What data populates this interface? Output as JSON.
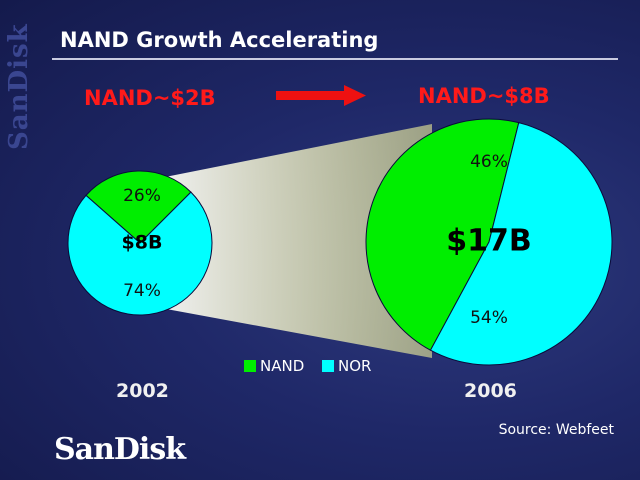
{
  "header": {
    "title": "NAND Growth Accelerating"
  },
  "labels": {
    "left_nand": "NAND~$2B",
    "right_nand": "NAND~$8B"
  },
  "colors": {
    "nand": "#00ee00",
    "nor": "#00ffff",
    "arrow": "#ee1111",
    "label_red": "#ff1a1a",
    "funnel": "#ffffb0"
  },
  "icons": {
    "side_logo": "sandisk-vertical-logo",
    "bottom_logo": "sandisk-logo",
    "arrow": "right-arrow"
  },
  "brand": {
    "side_logo_text": "SanDisk",
    "bottom_logo_text": "SanDisk"
  },
  "chart_data": [
    {
      "type": "pie",
      "year": "2002",
      "total_label": "$8B",
      "slices": [
        {
          "name": "NAND",
          "value": 26,
          "label": "26%"
        },
        {
          "name": "NOR",
          "value": 74,
          "label": "74%"
        }
      ]
    },
    {
      "type": "pie",
      "year": "2006",
      "total_label": "$17B",
      "slices": [
        {
          "name": "NAND",
          "value": 46,
          "label": "46%"
        },
        {
          "name": "NOR",
          "value": 54,
          "label": "54%"
        }
      ]
    }
  ],
  "legend": [
    {
      "name": "NAND"
    },
    {
      "name": "NOR"
    }
  ],
  "source": "Source: Webfeet"
}
